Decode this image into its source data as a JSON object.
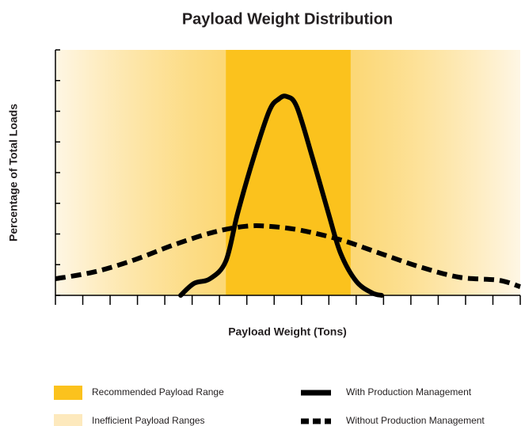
{
  "chart_data": {
    "type": "line",
    "title": "Payload Weight Distribution",
    "xlabel": "Payload Weight (Tons)",
    "ylabel": "Percentage of Total Loads",
    "xlim": [
      0,
      17
    ],
    "ylim": [
      0,
      8
    ],
    "xticks": [
      0,
      1,
      2,
      3,
      4,
      5,
      6,
      7,
      8,
      9,
      10,
      11,
      12,
      13,
      14,
      15,
      16,
      17
    ],
    "yticks": [
      0,
      1,
      2,
      3,
      4,
      5,
      6,
      7,
      8
    ],
    "recommended_range": [
      6.23,
      10.8
    ],
    "bands": [
      {
        "name": "Recommended Payload Range",
        "color": "#fbc21d"
      },
      {
        "name": "Inefficient Payload Ranges",
        "color": "#fde9bd"
      }
    ],
    "series": [
      {
        "name": "With Production Management",
        "color": "#000000",
        "dashed": false,
        "x": [
          4.58,
          5.07,
          5.65,
          6.23,
          6.66,
          7.24,
          7.82,
          8.17,
          8.46,
          8.83,
          9.41,
          9.99,
          10.43,
          11.0,
          11.58,
          11.93
        ],
        "values": [
          0,
          0.39,
          0.54,
          1.11,
          2.66,
          4.46,
          6.01,
          6.4,
          6.48,
          6.14,
          4.46,
          2.66,
          1.37,
          0.46,
          0.08,
          0
        ]
      },
      {
        "name": "Without Production Management",
        "color": "#000000",
        "dashed": true,
        "x": [
          0,
          1.45,
          2.9,
          4.34,
          5.79,
          6.95,
          7.82,
          8.98,
          10.43,
          11.87,
          13.32,
          14.77,
          16.22,
          17
        ],
        "values": [
          0.54,
          0.77,
          1.16,
          1.65,
          2.06,
          2.25,
          2.25,
          2.12,
          1.81,
          1.37,
          0.93,
          0.59,
          0.49,
          0.28
        ]
      }
    ]
  }
}
